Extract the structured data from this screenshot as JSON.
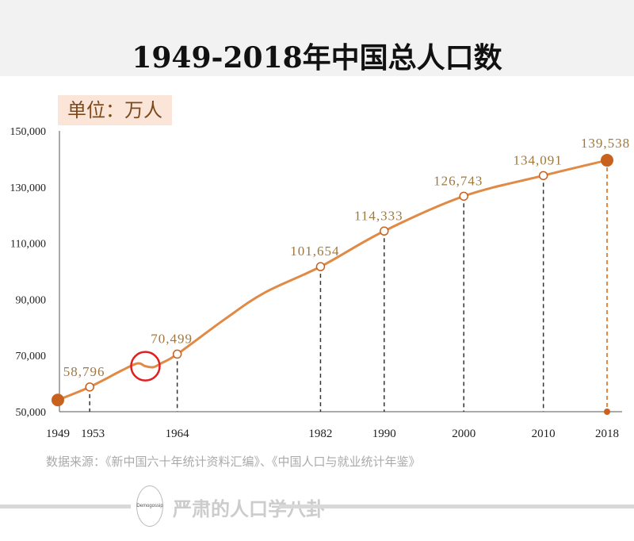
{
  "chart_data": {
    "type": "line",
    "title": "1949-2018年中国总人口数",
    "unit_label": "单位：万人",
    "ylim": [
      50000,
      150000
    ],
    "yticks": [
      50000,
      70000,
      90000,
      110000,
      130000,
      150000
    ],
    "ytick_labels": [
      "50,000",
      "70,000",
      "90,000",
      "110,000",
      "130,000",
      "150,000"
    ],
    "xlim": [
      1949,
      2018
    ],
    "xticks": [
      1949,
      1953,
      1964,
      1982,
      1990,
      2000,
      2010,
      2018
    ],
    "xtick_labels": [
      "1949",
      "1953",
      "1964",
      "1982",
      "1990",
      "2000",
      "2010",
      "2018"
    ],
    "series": [
      {
        "x": [
          1949,
          1953,
          1957,
          1959,
          1960,
          1961,
          1962,
          1964,
          1970,
          1975,
          1982,
          1990,
          2000,
          2010,
          2018
        ],
        "y": [
          54167,
          58796,
          64653,
          67207,
          66207,
          65859,
          67295,
          70499,
          82992,
          92420,
          101654,
          114333,
          126743,
          134091,
          139538
        ]
      }
    ],
    "labeled_points": [
      {
        "x": 1953,
        "y": 58796,
        "label": "58,796"
      },
      {
        "x": 1964,
        "y": 70499,
        "label": "70,499"
      },
      {
        "x": 1982,
        "y": 101654,
        "label": "101,654"
      },
      {
        "x": 1990,
        "y": 114333,
        "label": "114,333"
      },
      {
        "x": 2000,
        "y": 126743,
        "label": "126,743"
      },
      {
        "x": 2010,
        "y": 134091,
        "label": "134,091"
      },
      {
        "x": 2018,
        "y": 139538,
        "label": "139,538"
      }
    ],
    "highlight_circle_x": 1960,
    "grid": false,
    "colors": {
      "line": "#e08a45",
      "label": "#a0783c",
      "highlight": "#e02020",
      "endpoint": "#c8601e"
    }
  },
  "source": "数据来源：《新中国六十年统计资料汇编》、《中国人口与就业统计年鉴》",
  "footer": {
    "logo_text": "Demogossip",
    "brand": "严肃的人口学八卦"
  }
}
